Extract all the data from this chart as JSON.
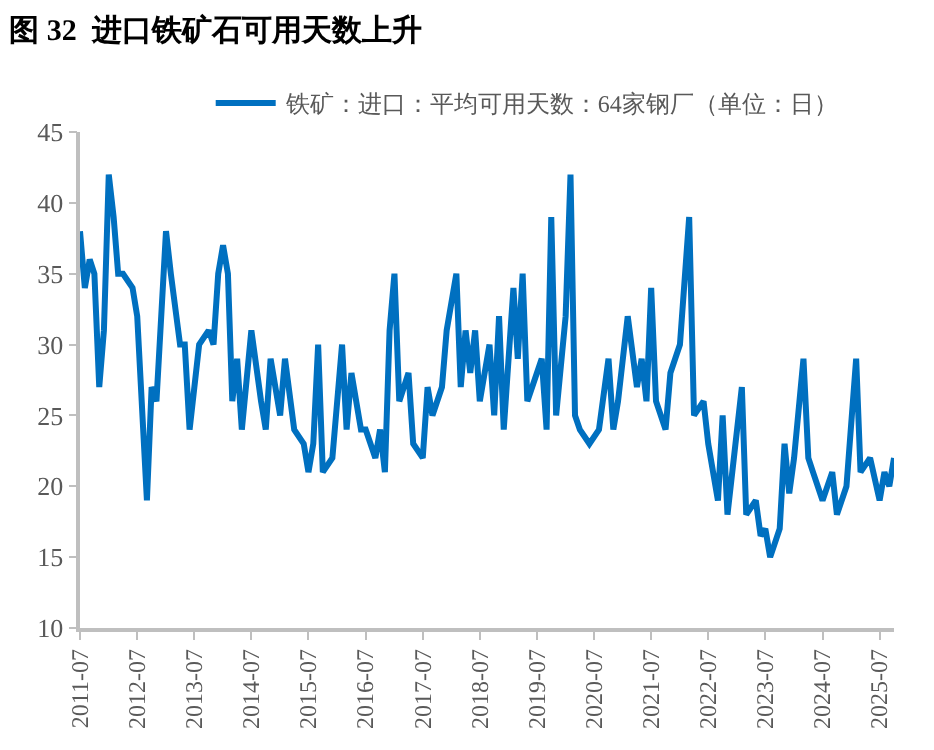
{
  "chart_data": {
    "type": "line",
    "title": "图 32  进口铁矿石可用天数上升",
    "x": [
      "2011-07",
      "2011-08",
      "2011-09",
      "2011-10",
      "2011-11",
      "2011-12",
      "2012-01",
      "2012-02",
      "2012-03",
      "2012-04",
      "2012-06",
      "2012-07",
      "2012-09",
      "2012-10",
      "2012-11",
      "2013-01",
      "2013-02",
      "2013-04",
      "2013-05",
      "2013-06",
      "2013-08",
      "2013-10",
      "2013-11",
      "2013-12",
      "2014-01",
      "2014-02",
      "2014-03",
      "2014-04",
      "2014-05",
      "2014-07",
      "2014-09",
      "2014-10",
      "2014-11",
      "2015-01",
      "2015-02",
      "2015-04",
      "2015-06",
      "2015-07",
      "2015-08",
      "2015-09",
      "2015-10",
      "2015-12",
      "2016-02",
      "2016-03",
      "2016-04",
      "2016-06",
      "2016-07",
      "2016-09",
      "2016-10",
      "2016-11",
      "2016-12",
      "2017-01",
      "2017-02",
      "2017-04",
      "2017-05",
      "2017-07",
      "2017-08",
      "2017-09",
      "2017-11",
      "2017-12",
      "2018-02",
      "2018-03",
      "2018-04",
      "2018-05",
      "2018-06",
      "2018-07",
      "2018-09",
      "2018-10",
      "2018-11",
      "2018-12",
      "2019-02",
      "2019-03",
      "2019-04",
      "2019-05",
      "2019-06",
      "2019-08",
      "2019-09",
      "2019-10",
      "2019-11",
      "2020-01",
      "2020-02",
      "2020-03",
      "2020-04",
      "2020-06",
      "2020-08",
      "2020-10",
      "2020-11",
      "2020-12",
      "2021-02",
      "2021-04",
      "2021-05",
      "2021-06",
      "2021-07",
      "2021-08",
      "2021-10",
      "2021-11",
      "2022-01",
      "2022-03",
      "2022-04",
      "2022-06",
      "2022-07",
      "2022-09",
      "2022-10",
      "2022-11",
      "2023-02",
      "2023-03",
      "2023-05",
      "2023-06",
      "2023-07",
      "2023-08",
      "2023-10",
      "2023-11",
      "2023-12",
      "2024-01",
      "2024-03",
      "2024-04",
      "2024-05",
      "2024-07",
      "2024-09",
      "2024-10",
      "2024-12",
      "2025-02",
      "2025-03",
      "2025-05",
      "2025-07",
      "2025-08",
      "2025-09",
      "2025-10"
    ],
    "series": [
      {
        "name": "铁矿：进口：平均可用天数：64家钢厂（单位：日）",
        "color": "#0070c0",
        "values": [
          38,
          34,
          36,
          35,
          27,
          31,
          42,
          39,
          35,
          35,
          34,
          32,
          19,
          27,
          26,
          38,
          35,
          30,
          30,
          24,
          30,
          31,
          30,
          35,
          37,
          35,
          26,
          29,
          24,
          31,
          26,
          24,
          29,
          25,
          29,
          24,
          23,
          21,
          23,
          30,
          21,
          22,
          30,
          24,
          28,
          24,
          24,
          22,
          24,
          21,
          31,
          35,
          26,
          28,
          23,
          22,
          27,
          25,
          27,
          31,
          35,
          27,
          31,
          28,
          31,
          26,
          30,
          25,
          32,
          24,
          34,
          29,
          35,
          26,
          27,
          29,
          24,
          39,
          25,
          32,
          42,
          25,
          24,
          23,
          24,
          29,
          24,
          26,
          32,
          27,
          29,
          26,
          34,
          26,
          24,
          28,
          30,
          39,
          25,
          26,
          23,
          19,
          25,
          18,
          27,
          18,
          19,
          16.5,
          17,
          15,
          17,
          23,
          19.5,
          22,
          29,
          22,
          21,
          19,
          21,
          18,
          20,
          29,
          21,
          22,
          19,
          21,
          20,
          22
        ]
      }
    ],
    "xlim": [
      "2011-07",
      "2025-10"
    ],
    "xticks": [
      "2011-07",
      "2012-07",
      "2013-07",
      "2014-07",
      "2015-07",
      "2016-07",
      "2017-07",
      "2018-07",
      "2019-07",
      "2020-07",
      "2021-07",
      "2022-07",
      "2023-07",
      "2024-07",
      "2025-07"
    ],
    "ylim": [
      10,
      45
    ],
    "yticks": [
      10,
      15,
      20,
      25,
      30,
      35,
      40,
      45
    ],
    "legend": "top",
    "marker": "none",
    "line_style": "solid"
  }
}
